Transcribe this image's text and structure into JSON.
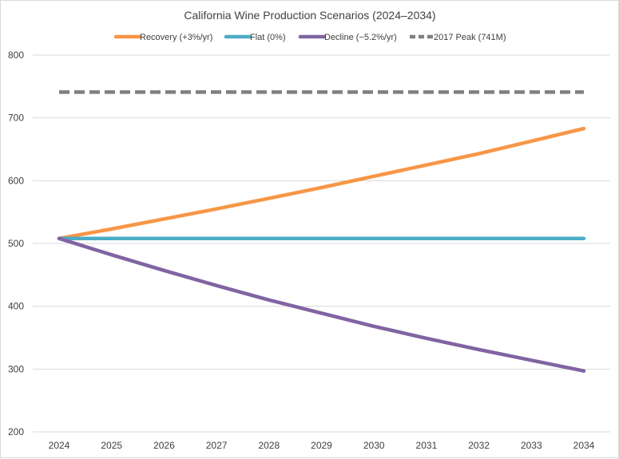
{
  "chart_data": {
    "type": "line",
    "title": "California Wine Production Scenarios (2024–2034)",
    "xlabel": "",
    "ylabel": "",
    "x": [
      "2024",
      "2025",
      "2026",
      "2027",
      "2028",
      "2029",
      "2030",
      "2031",
      "2032",
      "2033",
      "2034"
    ],
    "ylim": [
      200,
      800
    ],
    "yticks": [
      "200",
      "300",
      "400",
      "500",
      "600",
      "700",
      "800"
    ],
    "grid": true,
    "legend_position": "top",
    "series": [
      {
        "name": "Recovery (+3%/yr)",
        "color": "#f79646",
        "dash": false,
        "values": [
          508,
          523,
          539,
          555,
          572,
          589,
          607,
          625,
          643,
          663,
          683
        ]
      },
      {
        "name": "Flat (0%)",
        "color": "#4bacc6",
        "dash": false,
        "values": [
          508,
          508,
          508,
          508,
          508,
          508,
          508,
          508,
          508,
          508,
          508
        ]
      },
      {
        "name": "Decline (−5.2%/yr)",
        "color": "#8064a2",
        "dash": false,
        "values": [
          508,
          482,
          457,
          433,
          410,
          389,
          368,
          349,
          331,
          314,
          297
        ]
      },
      {
        "name": "2017 Peak (741M)",
        "color": "#7f7f7f",
        "dash": true,
        "values": [
          741,
          741,
          741,
          741,
          741,
          741,
          741,
          741,
          741,
          741,
          741
        ]
      }
    ]
  }
}
